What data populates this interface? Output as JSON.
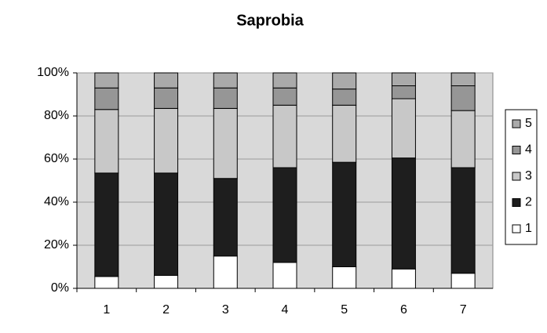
{
  "chart_data": {
    "type": "stacked_bar",
    "title": "Saprobia",
    "categories": [
      "1",
      "2",
      "3",
      "4",
      "5",
      "6",
      "7"
    ],
    "series": [
      {
        "name": "1",
        "color": "#ffffff",
        "values": [
          5.5,
          6,
          15,
          12,
          10,
          9,
          7
        ]
      },
      {
        "name": "2",
        "color": "#1e1e1e",
        "values": [
          48,
          47.5,
          36,
          44,
          48.5,
          51.5,
          49
        ]
      },
      {
        "name": "3",
        "color": "#c8c8c8",
        "values": [
          29.5,
          30,
          32.5,
          29,
          26.5,
          27.5,
          26.5
        ]
      },
      {
        "name": "4",
        "color": "#969696",
        "values": [
          10,
          9.5,
          9.5,
          8,
          7.5,
          6,
          11.5
        ]
      },
      {
        "name": "5",
        "color": "#aaaaaa",
        "values": [
          7,
          7,
          7,
          7,
          7.5,
          6,
          6
        ]
      }
    ],
    "ylim": [
      0,
      100
    ],
    "yticks": [
      {
        "value": 0,
        "label": "0%"
      },
      {
        "value": 20,
        "label": "20%"
      },
      {
        "value": 40,
        "label": "40%"
      },
      {
        "value": 60,
        "label": "60%"
      },
      {
        "value": 80,
        "label": "80%"
      },
      {
        "value": 100,
        "label": "100%"
      }
    ],
    "grid": true,
    "legend": "right"
  }
}
